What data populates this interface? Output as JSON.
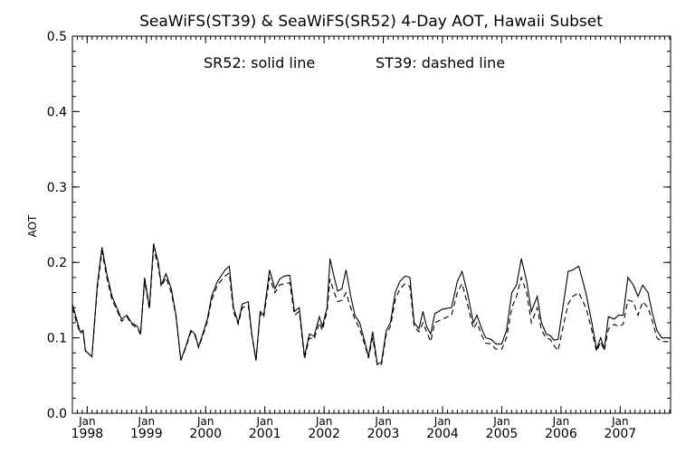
{
  "chart_data": {
    "type": "line",
    "title": "SeaWiFS(ST39) & SeaWiFS(SR52) 4-Day AOT, Hawaii Subset",
    "annotation_sr52": "SR52: solid line",
    "annotation_st39": "ST39: dashed line",
    "ylabel": "AOT",
    "xlabel": "",
    "ylim": [
      0.0,
      0.5
    ],
    "xlim": [
      1997.75,
      2007.85
    ],
    "y_ticks": [
      "0.0",
      "0.1",
      "0.2",
      "0.3",
      "0.4",
      "0.5"
    ],
    "x_ticks": [
      {
        "month": "Jan",
        "year": "1998",
        "x": 1998.0
      },
      {
        "month": "Jan",
        "year": "1999",
        "x": 1999.0
      },
      {
        "month": "Jan",
        "year": "2000",
        "x": 2000.0
      },
      {
        "month": "Jan",
        "year": "2001",
        "x": 2001.0
      },
      {
        "month": "Jan",
        "year": "2002",
        "x": 2002.0
      },
      {
        "month": "Jan",
        "year": "2003",
        "x": 2003.0
      },
      {
        "month": "Jan",
        "year": "2004",
        "x": 2004.0
      },
      {
        "month": "Jan",
        "year": "2005",
        "x": 2005.0
      },
      {
        "month": "Jan",
        "year": "2006",
        "x": 2006.0
      },
      {
        "month": "Jan",
        "year": "2007",
        "x": 2007.0
      }
    ],
    "grid": false,
    "series": [
      {
        "name": "SR52",
        "style": "solid",
        "color": "#000000",
        "points": [
          [
            1997.75,
            0.145
          ],
          [
            1997.82,
            0.125
          ],
          [
            1997.88,
            0.108
          ],
          [
            1997.93,
            0.11
          ],
          [
            1997.97,
            0.083
          ],
          [
            1998.08,
            0.075
          ],
          [
            1998.17,
            0.17
          ],
          [
            1998.25,
            0.22
          ],
          [
            1998.33,
            0.185
          ],
          [
            1998.42,
            0.155
          ],
          [
            1998.5,
            0.14
          ],
          [
            1998.58,
            0.125
          ],
          [
            1998.67,
            0.13
          ],
          [
            1998.75,
            0.12
          ],
          [
            1998.85,
            0.115
          ],
          [
            1998.9,
            0.105
          ],
          [
            1998.97,
            0.18
          ],
          [
            1999.05,
            0.14
          ],
          [
            1999.12,
            0.225
          ],
          [
            1999.2,
            0.2
          ],
          [
            1999.25,
            0.17
          ],
          [
            1999.33,
            0.185
          ],
          [
            1999.42,
            0.165
          ],
          [
            1999.5,
            0.13
          ],
          [
            1999.58,
            0.07
          ],
          [
            1999.67,
            0.09
          ],
          [
            1999.75,
            0.11
          ],
          [
            1999.82,
            0.105
          ],
          [
            1999.88,
            0.088
          ],
          [
            1999.95,
            0.105
          ],
          [
            2000.03,
            0.125
          ],
          [
            2000.1,
            0.155
          ],
          [
            2000.2,
            0.175
          ],
          [
            2000.33,
            0.19
          ],
          [
            2000.4,
            0.195
          ],
          [
            2000.47,
            0.14
          ],
          [
            2000.55,
            0.12
          ],
          [
            2000.62,
            0.145
          ],
          [
            2000.72,
            0.148
          ],
          [
            2000.78,
            0.105
          ],
          [
            2000.85,
            0.07
          ],
          [
            2000.92,
            0.135
          ],
          [
            2000.98,
            0.13
          ],
          [
            2001.08,
            0.19
          ],
          [
            2001.17,
            0.165
          ],
          [
            2001.25,
            0.178
          ],
          [
            2001.33,
            0.182
          ],
          [
            2001.42,
            0.183
          ],
          [
            2001.5,
            0.135
          ],
          [
            2001.58,
            0.14
          ],
          [
            2001.67,
            0.075
          ],
          [
            2001.75,
            0.105
          ],
          [
            2001.83,
            0.102
          ],
          [
            2001.92,
            0.128
          ],
          [
            2001.97,
            0.115
          ],
          [
            2002.05,
            0.14
          ],
          [
            2002.1,
            0.205
          ],
          [
            2002.17,
            0.18
          ],
          [
            2002.23,
            0.162
          ],
          [
            2002.3,
            0.165
          ],
          [
            2002.37,
            0.19
          ],
          [
            2002.45,
            0.155
          ],
          [
            2002.52,
            0.13
          ],
          [
            2002.6,
            0.12
          ],
          [
            2002.67,
            0.1
          ],
          [
            2002.75,
            0.075
          ],
          [
            2002.82,
            0.108
          ],
          [
            2002.9,
            0.065
          ],
          [
            2002.97,
            0.068
          ],
          [
            2003.05,
            0.11
          ],
          [
            2003.12,
            0.12
          ],
          [
            2003.2,
            0.16
          ],
          [
            2003.28,
            0.175
          ],
          [
            2003.37,
            0.182
          ],
          [
            2003.45,
            0.18
          ],
          [
            2003.52,
            0.12
          ],
          [
            2003.6,
            0.112
          ],
          [
            2003.67,
            0.135
          ],
          [
            2003.73,
            0.115
          ],
          [
            2003.8,
            0.105
          ],
          [
            2003.87,
            0.132
          ],
          [
            2004.0,
            0.138
          ],
          [
            2004.15,
            0.14
          ],
          [
            2004.25,
            0.175
          ],
          [
            2004.33,
            0.188
          ],
          [
            2004.42,
            0.16
          ],
          [
            2004.52,
            0.12
          ],
          [
            2004.58,
            0.13
          ],
          [
            2004.67,
            0.11
          ],
          [
            2004.73,
            0.1
          ],
          [
            2004.82,
            0.098
          ],
          [
            2004.9,
            0.092
          ],
          [
            2005.0,
            0.092
          ],
          [
            2005.08,
            0.11
          ],
          [
            2005.17,
            0.16
          ],
          [
            2005.25,
            0.17
          ],
          [
            2005.33,
            0.205
          ],
          [
            2005.42,
            0.175
          ],
          [
            2005.5,
            0.135
          ],
          [
            2005.6,
            0.155
          ],
          [
            2005.67,
            0.12
          ],
          [
            2005.75,
            0.105
          ],
          [
            2005.82,
            0.103
          ],
          [
            2005.88,
            0.097
          ],
          [
            2005.95,
            0.098
          ],
          [
            2006.05,
            0.15
          ],
          [
            2006.12,
            0.188
          ],
          [
            2006.2,
            0.19
          ],
          [
            2006.3,
            0.195
          ],
          [
            2006.42,
            0.16
          ],
          [
            2006.52,
            0.12
          ],
          [
            2006.6,
            0.085
          ],
          [
            2006.67,
            0.1
          ],
          [
            2006.73,
            0.085
          ],
          [
            2006.8,
            0.128
          ],
          [
            2006.9,
            0.125
          ],
          [
            2006.97,
            0.13
          ],
          [
            2007.05,
            0.13
          ],
          [
            2007.13,
            0.18
          ],
          [
            2007.22,
            0.17
          ],
          [
            2007.3,
            0.155
          ],
          [
            2007.38,
            0.17
          ],
          [
            2007.47,
            0.16
          ],
          [
            2007.55,
            0.13
          ],
          [
            2007.62,
            0.11
          ],
          [
            2007.7,
            0.1
          ],
          [
            2007.85,
            0.1
          ]
        ]
      },
      {
        "name": "ST39",
        "style": "dashed",
        "color": "#000000",
        "points": [
          [
            1997.75,
            0.14
          ],
          [
            1997.82,
            0.12
          ],
          [
            1997.88,
            0.106
          ],
          [
            1997.93,
            0.108
          ],
          [
            1997.97,
            0.082
          ],
          [
            1998.08,
            0.075
          ],
          [
            1998.17,
            0.165
          ],
          [
            1998.25,
            0.215
          ],
          [
            1998.33,
            0.18
          ],
          [
            1998.42,
            0.15
          ],
          [
            1998.5,
            0.137
          ],
          [
            1998.58,
            0.122
          ],
          [
            1998.67,
            0.128
          ],
          [
            1998.75,
            0.118
          ],
          [
            1998.85,
            0.113
          ],
          [
            1998.9,
            0.104
          ],
          [
            1998.97,
            0.175
          ],
          [
            1999.05,
            0.138
          ],
          [
            1999.12,
            0.218
          ],
          [
            1999.2,
            0.195
          ],
          [
            1999.25,
            0.168
          ],
          [
            1999.33,
            0.18
          ],
          [
            1999.42,
            0.16
          ],
          [
            1999.5,
            0.128
          ],
          [
            1999.58,
            0.07
          ],
          [
            1999.67,
            0.088
          ],
          [
            1999.75,
            0.108
          ],
          [
            1999.82,
            0.103
          ],
          [
            1999.88,
            0.087
          ],
          [
            1999.95,
            0.102
          ],
          [
            2000.03,
            0.122
          ],
          [
            2000.1,
            0.15
          ],
          [
            2000.2,
            0.17
          ],
          [
            2000.33,
            0.182
          ],
          [
            2000.4,
            0.186
          ],
          [
            2000.47,
            0.135
          ],
          [
            2000.55,
            0.118
          ],
          [
            2000.62,
            0.14
          ],
          [
            2000.72,
            0.143
          ],
          [
            2000.78,
            0.103
          ],
          [
            2000.85,
            0.07
          ],
          [
            2000.92,
            0.132
          ],
          [
            2000.98,
            0.127
          ],
          [
            2001.08,
            0.18
          ],
          [
            2001.17,
            0.16
          ],
          [
            2001.25,
            0.17
          ],
          [
            2001.33,
            0.172
          ],
          [
            2001.42,
            0.173
          ],
          [
            2001.5,
            0.13
          ],
          [
            2001.58,
            0.135
          ],
          [
            2001.67,
            0.072
          ],
          [
            2001.75,
            0.1
          ],
          [
            2001.83,
            0.098
          ],
          [
            2001.92,
            0.12
          ],
          [
            2001.97,
            0.11
          ],
          [
            2002.05,
            0.135
          ],
          [
            2002.1,
            0.178
          ],
          [
            2002.17,
            0.16
          ],
          [
            2002.23,
            0.148
          ],
          [
            2002.3,
            0.15
          ],
          [
            2002.37,
            0.16
          ],
          [
            2002.45,
            0.14
          ],
          [
            2002.52,
            0.125
          ],
          [
            2002.6,
            0.112
          ],
          [
            2002.67,
            0.095
          ],
          [
            2002.75,
            0.073
          ],
          [
            2002.82,
            0.1
          ],
          [
            2002.9,
            0.063
          ],
          [
            2002.97,
            0.065
          ],
          [
            2003.05,
            0.105
          ],
          [
            2003.12,
            0.115
          ],
          [
            2003.2,
            0.15
          ],
          [
            2003.28,
            0.165
          ],
          [
            2003.37,
            0.172
          ],
          [
            2003.45,
            0.168
          ],
          [
            2003.52,
            0.115
          ],
          [
            2003.6,
            0.108
          ],
          [
            2003.67,
            0.12
          ],
          [
            2003.73,
            0.108
          ],
          [
            2003.8,
            0.095
          ],
          [
            2003.87,
            0.12
          ],
          [
            2004.0,
            0.125
          ],
          [
            2004.15,
            0.13
          ],
          [
            2004.25,
            0.16
          ],
          [
            2004.33,
            0.172
          ],
          [
            2004.42,
            0.145
          ],
          [
            2004.52,
            0.112
          ],
          [
            2004.58,
            0.12
          ],
          [
            2004.67,
            0.102
          ],
          [
            2004.73,
            0.093
          ],
          [
            2004.82,
            0.092
          ],
          [
            2004.9,
            0.085
          ],
          [
            2005.0,
            0.085
          ],
          [
            2005.08,
            0.1
          ],
          [
            2005.17,
            0.14
          ],
          [
            2005.25,
            0.155
          ],
          [
            2005.33,
            0.18
          ],
          [
            2005.42,
            0.16
          ],
          [
            2005.5,
            0.12
          ],
          [
            2005.6,
            0.14
          ],
          [
            2005.67,
            0.11
          ],
          [
            2005.75,
            0.1
          ],
          [
            2005.82,
            0.098
          ],
          [
            2005.88,
            0.09
          ],
          [
            2005.95,
            0.083
          ],
          [
            2006.05,
            0.12
          ],
          [
            2006.12,
            0.145
          ],
          [
            2006.2,
            0.155
          ],
          [
            2006.3,
            0.16
          ],
          [
            2006.42,
            0.14
          ],
          [
            2006.52,
            0.11
          ],
          [
            2006.6,
            0.082
          ],
          [
            2006.67,
            0.095
          ],
          [
            2006.73,
            0.083
          ],
          [
            2006.8,
            0.112
          ],
          [
            2006.9,
            0.118
          ],
          [
            2006.97,
            0.115
          ],
          [
            2007.05,
            0.118
          ],
          [
            2007.13,
            0.15
          ],
          [
            2007.22,
            0.148
          ],
          [
            2007.3,
            0.13
          ],
          [
            2007.38,
            0.148
          ],
          [
            2007.47,
            0.14
          ],
          [
            2007.55,
            0.12
          ],
          [
            2007.62,
            0.1
          ],
          [
            2007.7,
            0.095
          ],
          [
            2007.85,
            0.095
          ]
        ]
      }
    ]
  }
}
